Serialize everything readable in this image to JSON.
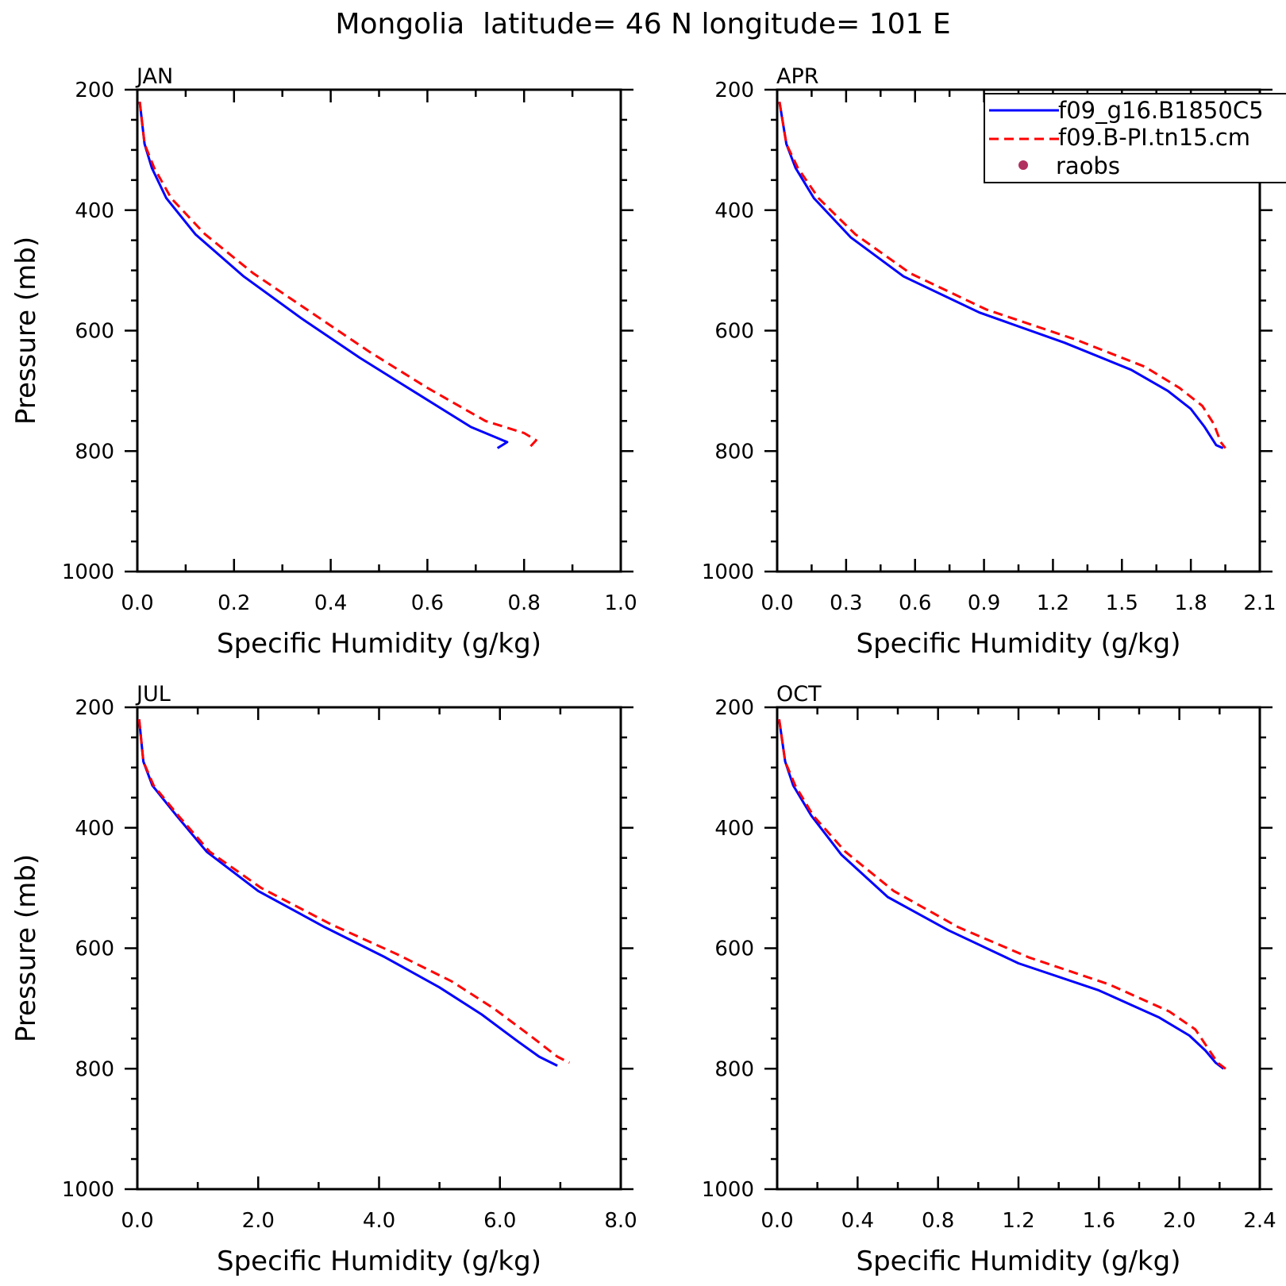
{
  "title": "Mongolia  latitude= 46 N longitude= 101 E",
  "legend": {
    "entries": [
      {
        "label": "f09_g16.B1850C5",
        "color": "#0000ff",
        "style": "solid"
      },
      {
        "label": "f09.B-PI.tn15.cm",
        "color": "#ff0000",
        "style": "dashed"
      },
      {
        "label": "raobs",
        "color": "#b03060",
        "style": "marker"
      }
    ]
  },
  "chart_data": [
    {
      "type": "line",
      "panel": "JAN",
      "xlabel": "Specific Humidity (g/kg)",
      "ylabel": "Pressure (mb)",
      "xlim": [
        0,
        1.0
      ],
      "ylim": [
        200,
        1000
      ],
      "y_reversed": true,
      "xticks": [
        "0.0",
        "0.2",
        "0.4",
        "0.6",
        "0.8",
        "1.0"
      ],
      "yticks": [
        "200",
        "400",
        "600",
        "800",
        "1000"
      ],
      "series": [
        {
          "name": "f09_g16.B1850C5",
          "color": "#0000ff",
          "x": [
            0.005,
            0.015,
            0.03,
            0.06,
            0.12,
            0.22,
            0.34,
            0.46,
            0.58,
            0.69,
            0.75,
            0.765,
            0.745
          ],
          "y": [
            220,
            290,
            330,
            380,
            440,
            510,
            580,
            645,
            705,
            760,
            780,
            785,
            795
          ]
        },
        {
          "name": "f09.B-PI.tn15.cm",
          "color": "#ff0000",
          "x": [
            0.005,
            0.015,
            0.035,
            0.07,
            0.14,
            0.24,
            0.36,
            0.48,
            0.6,
            0.72,
            0.8,
            0.825,
            0.81
          ],
          "y": [
            220,
            290,
            330,
            380,
            440,
            505,
            570,
            635,
            695,
            750,
            770,
            782,
            795
          ]
        }
      ]
    },
    {
      "type": "line",
      "panel": "APR",
      "xlabel": "Specific Humidity (g/kg)",
      "ylabel": "",
      "xlim": [
        0,
        2.1
      ],
      "ylim": [
        200,
        1000
      ],
      "y_reversed": true,
      "xticks": [
        "0.0",
        "0.3",
        "0.6",
        "0.9",
        "1.2",
        "1.5",
        "1.8",
        "2.1"
      ],
      "yticks": [
        "200",
        "400",
        "600",
        "800",
        "1000"
      ],
      "series": [
        {
          "name": "f09_g16.B1850C5",
          "color": "#0000ff",
          "x": [
            0.01,
            0.04,
            0.08,
            0.16,
            0.32,
            0.55,
            0.88,
            1.25,
            1.54,
            1.7,
            1.8,
            1.86,
            1.91,
            1.94
          ],
          "y": [
            220,
            290,
            330,
            380,
            445,
            510,
            570,
            620,
            665,
            700,
            730,
            760,
            790,
            795
          ]
        },
        {
          "name": "f09.B-PI.tn15.cm",
          "color": "#ff0000",
          "x": [
            0.01,
            0.04,
            0.09,
            0.18,
            0.34,
            0.58,
            0.91,
            1.3,
            1.6,
            1.75,
            1.85,
            1.9,
            1.93,
            1.95
          ],
          "y": [
            220,
            290,
            330,
            380,
            440,
            505,
            565,
            615,
            660,
            695,
            725,
            755,
            785,
            795
          ]
        }
      ]
    },
    {
      "type": "line",
      "panel": "JUL",
      "xlabel": "Specific Humidity (g/kg)",
      "ylabel": "Pressure (mb)",
      "xlim": [
        0,
        8.0
      ],
      "ylim": [
        200,
        1000
      ],
      "y_reversed": true,
      "xticks": [
        "0.0",
        "2.0",
        "4.0",
        "6.0",
        "8.0"
      ],
      "yticks": [
        "200",
        "400",
        "600",
        "800",
        "1000"
      ],
      "series": [
        {
          "name": "f09_g16.B1850C5",
          "color": "#0000ff",
          "x": [
            0.03,
            0.1,
            0.25,
            0.65,
            1.15,
            2.0,
            3.1,
            4.1,
            5.0,
            5.7,
            6.3,
            6.65,
            6.95
          ],
          "y": [
            220,
            290,
            330,
            380,
            440,
            505,
            565,
            615,
            665,
            710,
            755,
            780,
            795
          ]
        },
        {
          "name": "f09.B-PI.tn15.cm",
          "color": "#ff0000",
          "x": [
            0.03,
            0.1,
            0.27,
            0.68,
            1.2,
            2.05,
            3.2,
            4.3,
            5.2,
            5.9,
            6.5,
            6.95,
            7.15
          ],
          "y": [
            220,
            290,
            330,
            380,
            440,
            500,
            560,
            610,
            655,
            700,
            745,
            780,
            790
          ]
        }
      ]
    },
    {
      "type": "line",
      "panel": "OCT",
      "xlabel": "Specific Humidity (g/kg)",
      "ylabel": "",
      "xlim": [
        0,
        2.4
      ],
      "ylim": [
        200,
        1000
      ],
      "y_reversed": true,
      "xticks": [
        "0.0",
        "0.4",
        "0.8",
        "1.2",
        "1.6",
        "2.0",
        "2.4"
      ],
      "yticks": [
        "200",
        "400",
        "600",
        "800",
        "1000"
      ],
      "series": [
        {
          "name": "f09_g16.B1850C5",
          "color": "#0000ff",
          "x": [
            0.01,
            0.04,
            0.08,
            0.17,
            0.32,
            0.55,
            0.85,
            1.2,
            1.6,
            1.9,
            2.05,
            2.13,
            2.18,
            2.22
          ],
          "y": [
            220,
            290,
            330,
            380,
            445,
            515,
            570,
            625,
            670,
            715,
            745,
            770,
            790,
            800
          ]
        },
        {
          "name": "f09.B-PI.tn15.cm",
          "color": "#ff0000",
          "x": [
            0.01,
            0.04,
            0.09,
            0.18,
            0.34,
            0.58,
            0.9,
            1.25,
            1.65,
            1.95,
            2.08,
            2.14,
            2.19,
            2.23
          ],
          "y": [
            220,
            290,
            330,
            380,
            440,
            505,
            565,
            615,
            660,
            705,
            735,
            765,
            790,
            800
          ]
        }
      ]
    }
  ]
}
